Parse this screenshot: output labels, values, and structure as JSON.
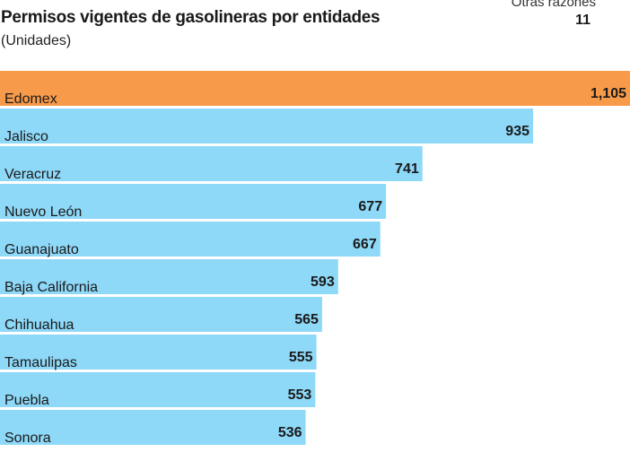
{
  "chart_data": {
    "type": "bar",
    "orientation": "horizontal",
    "title": "Permisos vigentes de gasolineras por entidades",
    "subtitle": "(Unidades)",
    "note": {
      "label": "Otras razones",
      "value": "11"
    },
    "categories": [
      "Edomex",
      "Jalisco",
      "Veracruz",
      "Nuevo León",
      "Guanajuato",
      "Baja California",
      "Chihuahua",
      "Tamaulipas",
      "Puebla",
      "Sonora"
    ],
    "values": [
      1105,
      935,
      741,
      677,
      667,
      593,
      565,
      555,
      553,
      536
    ],
    "value_labels": [
      "1,105",
      "935",
      "741",
      "677",
      "667",
      "593",
      "565",
      "555",
      "553",
      "536"
    ],
    "highlight_index": 0,
    "colors": {
      "highlight": "#F79A4A",
      "bar": "#8ED8F8"
    }
  }
}
